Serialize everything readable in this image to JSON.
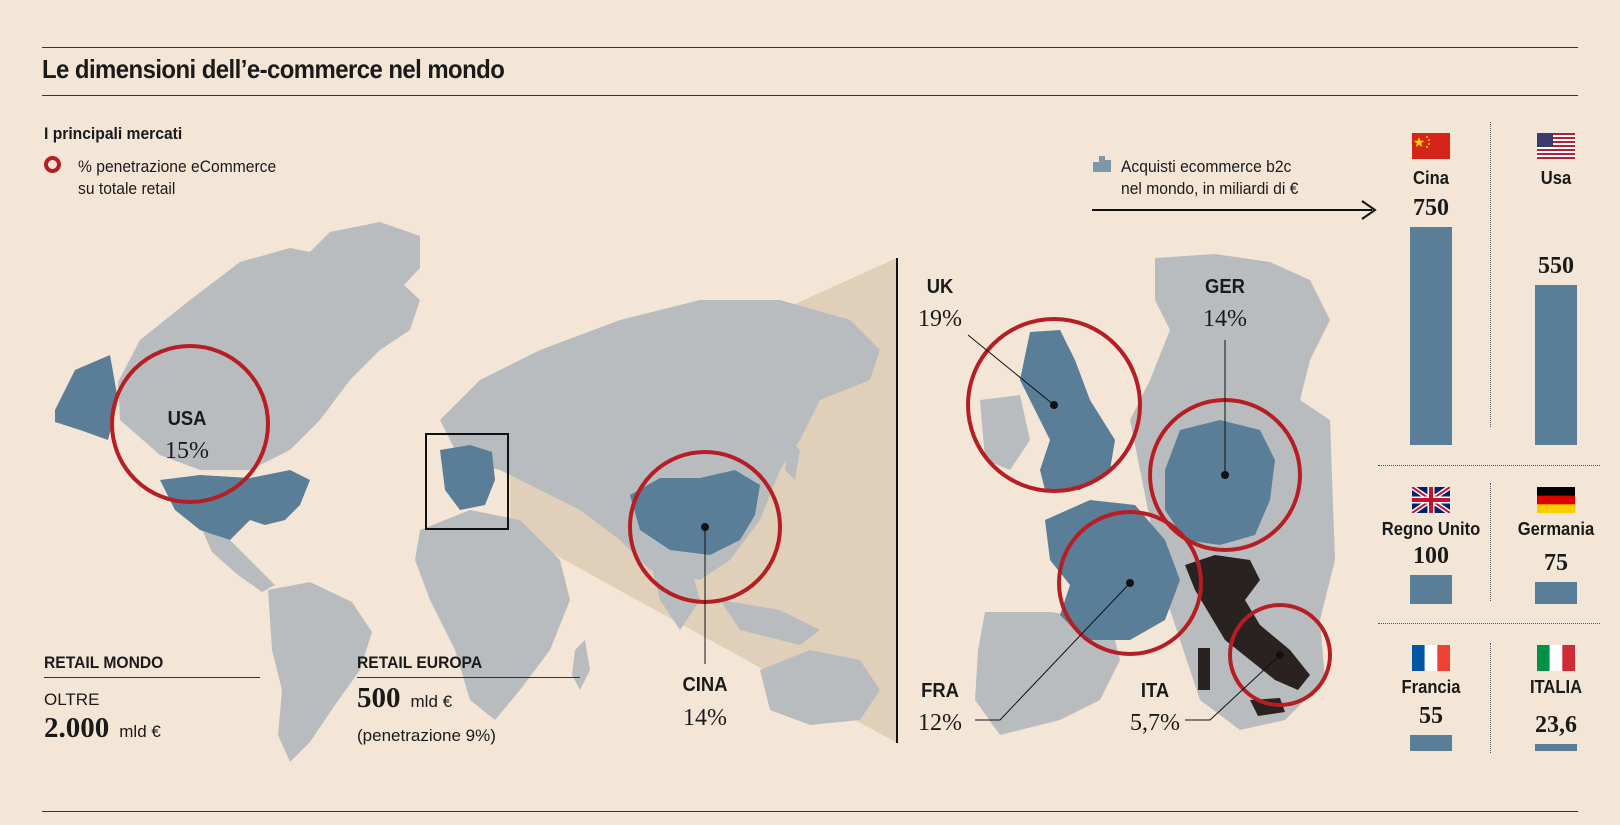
{
  "title": "Le dimensioni dell’e-commerce nel mondo",
  "legend": {
    "heading": "I principali mercati",
    "ring_line1": "% penetrazione eCommerce",
    "ring_line2": "su totale retail",
    "bars_line1": "Acquisti ecommerce b2c",
    "bars_line2": "nel mondo, in miliardi di €"
  },
  "colors": {
    "background": "#f4e6d6",
    "land": "#b9bcbf",
    "highlight": "#5a7e98",
    "ring": "#b51f24",
    "italy": "#2a2220"
  },
  "markets_world": [
    {
      "name": "USA",
      "pct": "15%"
    },
    {
      "name": "CINA",
      "pct": "14%"
    }
  ],
  "markets_europe": [
    {
      "name": "UK",
      "pct": "19%"
    },
    {
      "name": "GER",
      "pct": "14%"
    },
    {
      "name": "FRA",
      "pct": "12%"
    },
    {
      "name": "ITA",
      "pct": "5,7%"
    }
  ],
  "retail_world": {
    "heading": "RETAIL MONDO",
    "prefix": "OLTRE",
    "value": "2.000",
    "unit": "mld €"
  },
  "retail_europe": {
    "heading": "RETAIL EUROPA",
    "value": "500",
    "unit": "mld €",
    "note": "(penetrazione 9%)"
  },
  "ecommerce": [
    {
      "country": "Cina",
      "value": 750,
      "label": "750",
      "flag": "china-flag"
    },
    {
      "country": "Usa",
      "value": 550,
      "label": "550",
      "flag": "usa-flag"
    },
    {
      "country": "Regno Unito",
      "value": 100,
      "label": "100",
      "flag": "uk-flag"
    },
    {
      "country": "Germania",
      "value": 75,
      "label": "75",
      "flag": "germany-flag"
    },
    {
      "country": "Francia",
      "value": 55,
      "label": "55",
      "flag": "france-flag"
    },
    {
      "country": "ITALIA",
      "value": 23.6,
      "label": "23,6",
      "flag": "italy-flag"
    }
  ]
}
